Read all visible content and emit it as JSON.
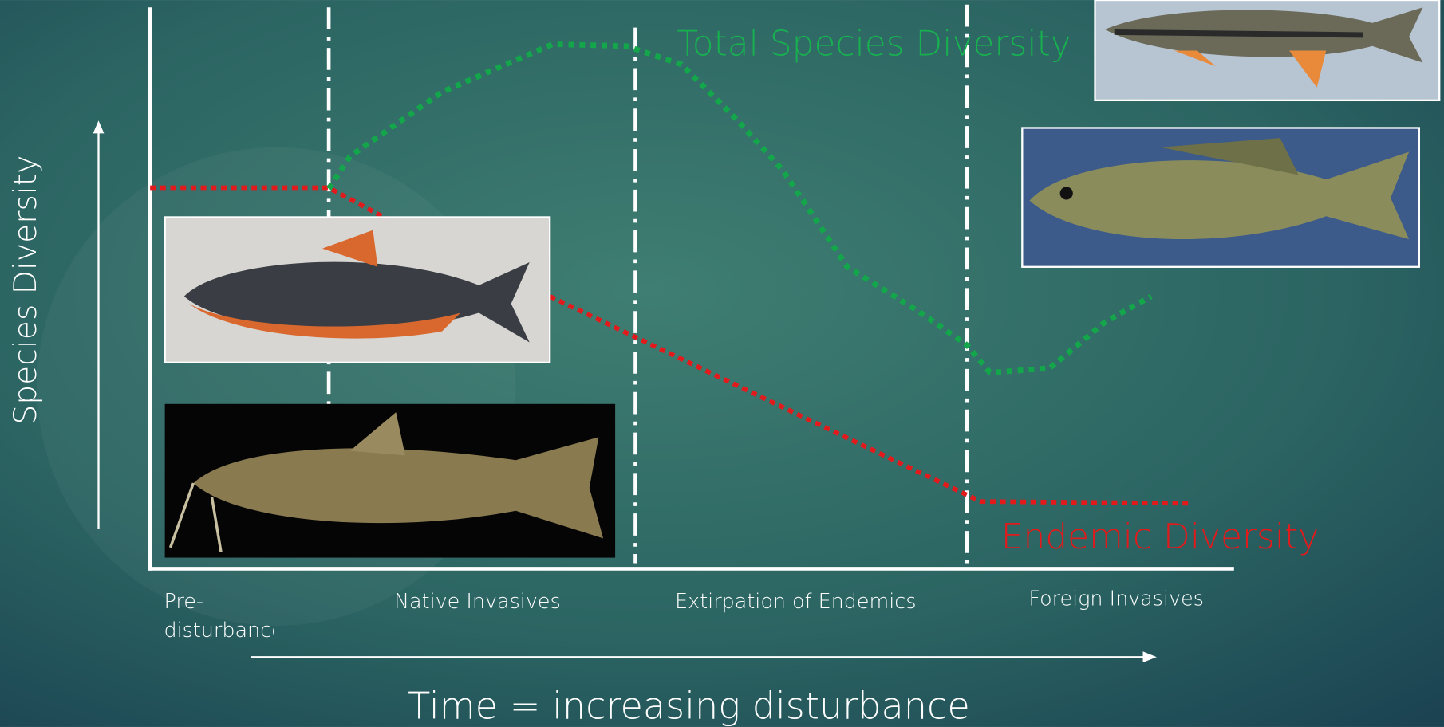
{
  "y_axis_label": "Species Diversity",
  "x_axis_label": "Time = increasing disturbance",
  "curves": [
    {
      "label": "Total Species Diversity"
    },
    {
      "label": "Endemic Diversity"
    }
  ],
  "phases": [
    "Pre-disturbance",
    "Native Invasives",
    "Extirpation of Endemics",
    "Foreign Invasives"
  ]
}
